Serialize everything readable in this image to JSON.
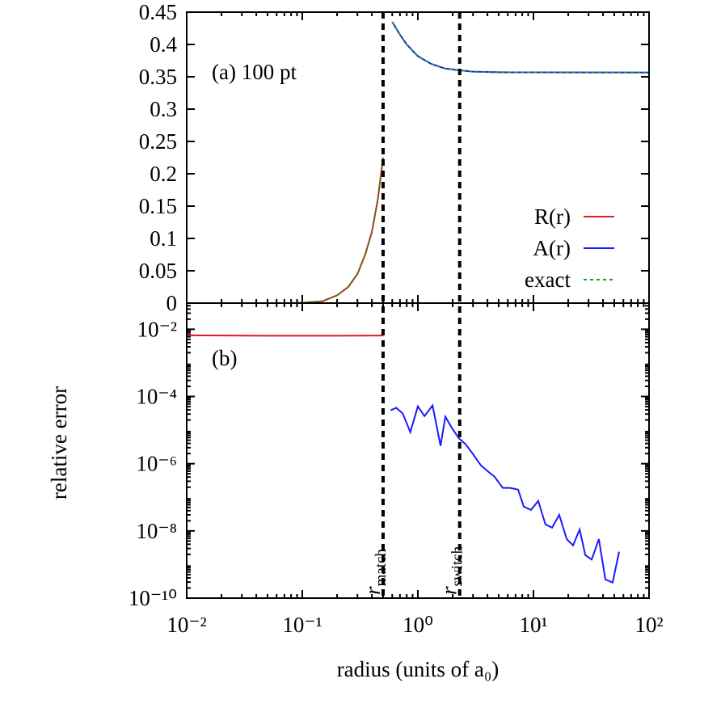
{
  "chart_data": [
    {
      "type": "line",
      "label": "(a) 100 pt",
      "xlim": [
        0.01,
        100
      ],
      "xticks": [
        0.01,
        0.1,
        1,
        10,
        100
      ],
      "xscale": "log",
      "ylim": [
        0,
        0.45
      ],
      "yticks": [
        0,
        0.05,
        0.1,
        0.15,
        0.2,
        0.25,
        0.3,
        0.35,
        0.4,
        0.45
      ],
      "legend": "lower right",
      "series": [
        {
          "name": "R(r)",
          "color": "#e8161b",
          "style": "solid",
          "x": [
            0.08,
            0.1,
            0.15,
            0.2,
            0.25,
            0.3,
            0.35,
            0.4,
            0.45,
            0.5
          ],
          "values": [
            0,
            0.0005,
            0.003,
            0.012,
            0.025,
            0.045,
            0.075,
            0.11,
            0.16,
            0.225
          ]
        },
        {
          "name": "A(r)",
          "color": "#1a1aff",
          "style": "solid",
          "x": [
            0.6,
            0.7,
            0.8,
            1,
            1.3,
            1.7,
            2.3,
            3,
            5,
            10,
            100
          ],
          "values": [
            0.435,
            0.415,
            0.4,
            0.382,
            0.37,
            0.363,
            0.36,
            0.358,
            0.357,
            0.3568,
            0.3566
          ]
        },
        {
          "name": "exact",
          "color": "#1f9a1f",
          "style": "dashed",
          "x": [
            0.08,
            0.1,
            0.15,
            0.2,
            0.25,
            0.3,
            0.35,
            0.4,
            0.45,
            0.5,
            0.55,
            0.6,
            0.7,
            0.8,
            1,
            1.3,
            1.7,
            2.3,
            3,
            5,
            10,
            100
          ],
          "values": [
            0,
            0.0005,
            0.003,
            0.012,
            0.025,
            0.045,
            0.075,
            0.11,
            0.16,
            0.225,
            null,
            0.435,
            0.415,
            0.4,
            0.382,
            0.37,
            0.363,
            0.36,
            0.358,
            0.357,
            0.3568,
            0.3566
          ]
        }
      ]
    },
    {
      "type": "line",
      "label": "(b)",
      "x_label": "radius (units of a₀)",
      "y_label": "relative error",
      "xlim": [
        0.01,
        100
      ],
      "xscale": "log",
      "yscale": "log",
      "xticks": [
        {
          "value": 0.01,
          "label": "10⁻²"
        },
        {
          "value": 0.1,
          "label": "10⁻¹"
        },
        {
          "value": 1,
          "label": "10⁰"
        },
        {
          "value": 10,
          "label": "10¹"
        },
        {
          "value": 100,
          "label": "10²"
        }
      ],
      "ylim": [
        1e-10,
        0.06
      ],
      "yticks": [
        {
          "value": 1e-10,
          "label": "10⁻¹⁰"
        },
        {
          "value": 1e-08,
          "label": "10⁻⁸"
        },
        {
          "value": 1e-06,
          "label": "10⁻⁶"
        },
        {
          "value": 0.0001,
          "label": "10⁻⁴"
        },
        {
          "value": 0.01,
          "label": "10⁻²"
        }
      ],
      "series": [
        {
          "name": "R(r)",
          "color": "#e8161b",
          "x": [
            0.01,
            0.05,
            0.1,
            0.2,
            0.5
          ],
          "values": [
            0.0066,
            0.0064,
            0.0064,
            0.0064,
            0.0065
          ]
        },
        {
          "name": "A(r)",
          "color": "#1a1aff",
          "x": [
            0.58,
            0.65,
            0.74,
            0.86,
            1,
            1.14,
            1.34,
            1.57,
            1.73,
            1.97,
            2.27,
            2.59,
            2.99,
            3.51,
            3.99,
            4.61,
            5.42,
            6.27,
            7.36,
            8.24,
            9.53,
            11,
            12.7,
            14.5,
            16.7,
            19.4,
            22,
            25.1,
            28.1,
            31.9,
            36.8,
            41.9,
            48.4,
            55.1
          ],
          "values": [
            3.9e-05,
            4.6e-05,
            3.1e-05,
            8.7e-06,
            5.1e-05,
            2.6e-05,
            5.4e-05,
            3.4e-06,
            2.5e-05,
            1.15e-05,
            5.6e-06,
            3.8e-06,
            1.95e-06,
            8.9e-07,
            6.1e-07,
            4.1e-07,
            1.9e-07,
            1.9e-07,
            1.7e-07,
            5.3e-08,
            4.2e-08,
            7.8e-08,
            1.56e-08,
            1.25e-08,
            3e-08,
            5.7e-09,
            3.7e-09,
            1.1e-08,
            1.9e-09,
            1.4e-09,
            5.7e-09,
            3.6e-10,
            2.9e-10,
            2.4e-09
          ]
        }
      ],
      "vlines": [
        {
          "x": 0.5,
          "text": "r",
          "subscript": "match"
        },
        {
          "x": 2.3,
          "text": "r",
          "subscript": "switch"
        }
      ]
    }
  ]
}
